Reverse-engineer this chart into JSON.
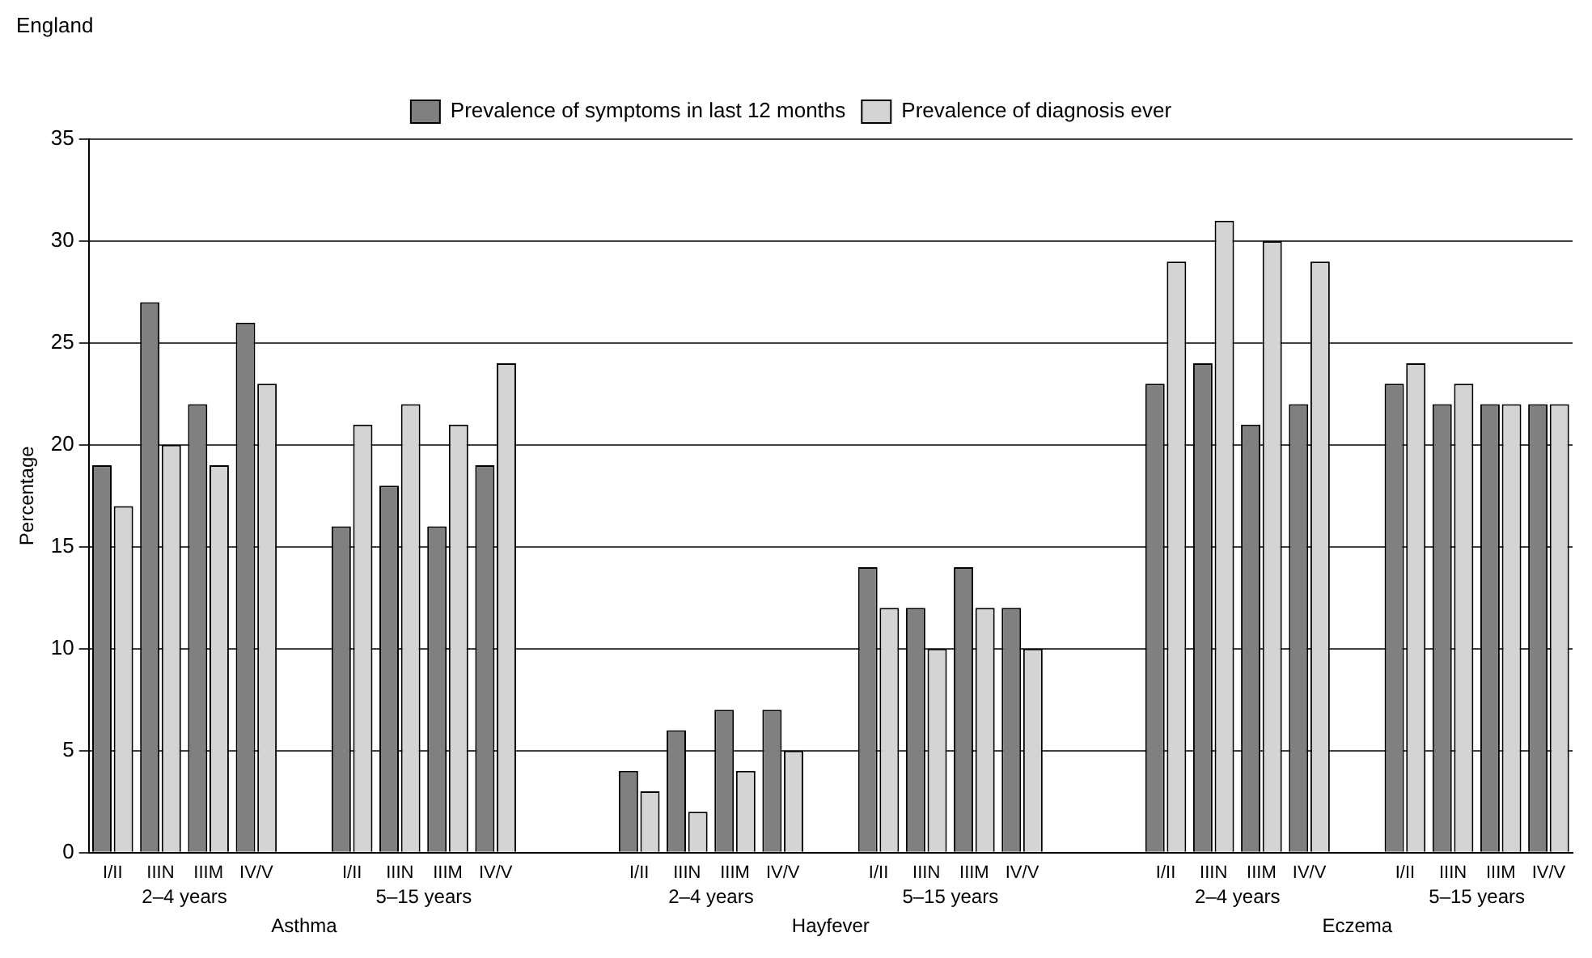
{
  "chart_data": {
    "type": "bar",
    "title": "England",
    "ylabel": "Percentage",
    "categories": [
      "I/II",
      "IIIN",
      "IIIM",
      "IV/V",
      null,
      "I/II",
      "IIIN",
      "IIIM",
      "IV/V",
      null,
      null,
      "I/II",
      "IIIN",
      "IIIM",
      "IV/V",
      null,
      "I/II",
      "IIIN",
      "IIIM",
      "IV/V",
      null,
      null,
      "I/II",
      "IIIN",
      "IIIM",
      "IV/V",
      null,
      "I/II",
      "IIIN",
      "IIIM",
      "IV/V"
    ],
    "series": [
      {
        "name": "Prevalence of symptoms in last 12 months",
        "color": "#808080",
        "values": [
          19,
          27,
          22,
          26,
          null,
          16,
          18,
          16,
          19,
          null,
          null,
          4,
          6,
          7,
          7,
          null,
          14,
          12,
          14,
          12,
          null,
          null,
          23,
          24,
          21,
          22,
          null,
          23,
          22,
          22,
          22
        ]
      },
      {
        "name": "Prevalence of diagnosis ever",
        "color": "#d4d4d4",
        "values": [
          17,
          20,
          19,
          23,
          null,
          21,
          22,
          21,
          24,
          null,
          null,
          3,
          2,
          4,
          5,
          null,
          12,
          10,
          12,
          10,
          null,
          null,
          29,
          31,
          30,
          29,
          null,
          24,
          23,
          22,
          22
        ]
      }
    ],
    "annotations": [
      "2–4 years",
      "5–15 years",
      "2–4 years",
      "5–15 years",
      "2–4 years",
      "5–15 years",
      "Asthma",
      "Hayfever",
      "Eczema"
    ],
    "ylim": [
      0,
      35
    ],
    "yticks": [
      0,
      5,
      10,
      15,
      20,
      25,
      30,
      35
    ],
    "grid": "y",
    "legend": "top"
  }
}
